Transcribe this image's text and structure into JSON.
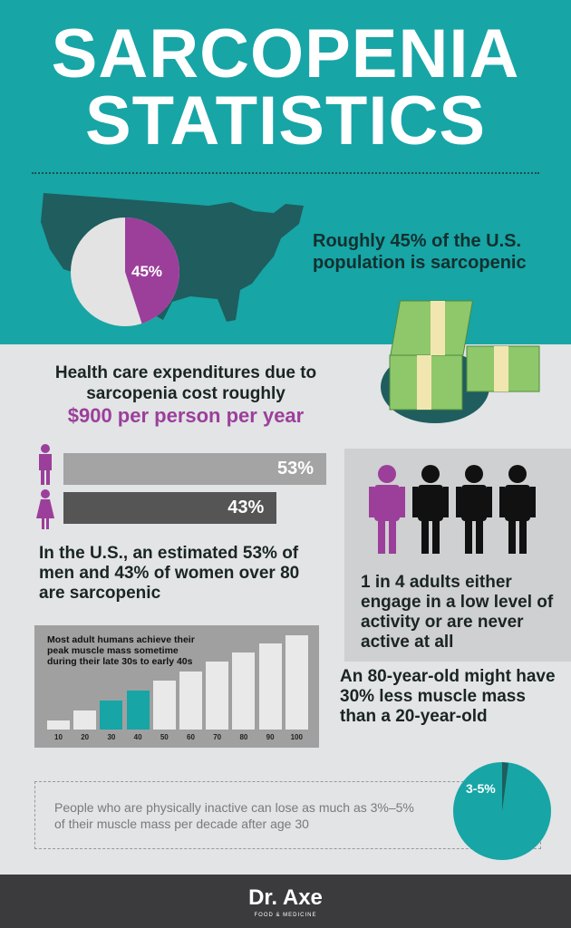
{
  "title": {
    "line1": "SARCOPENIA",
    "line2": "STATISTICS"
  },
  "colors": {
    "teal": "#17a5a6",
    "purple": "#9b3f9b",
    "dark_teal": "#1f5d5e",
    "gray_bg": "#e2e4e5",
    "footer": "#3b3b3d"
  },
  "population": {
    "pie_label": "45%",
    "text": "Roughly 45% of the U.S. population is sarcopenic",
    "percent": 45
  },
  "cost": {
    "text": "Health care expenditures due to sarcopenia cost roughly",
    "highlight": "$900 per person per year"
  },
  "gender": {
    "men_label": "53%",
    "women_label": "43%",
    "text": "In the U.S., an estimated 53% of men and 43% of women over 80 are sarcopenic"
  },
  "activity": {
    "text": "1 in 4 adults either engage in a low level of activity or are never active at all"
  },
  "age_compare": {
    "text": "An 80-year-old might have 30% less muscle mass than a 20-year-old"
  },
  "inactive": {
    "text": "People who are physically inactive can lose as much as 3%–5% of their muscle mass per decade after age 30",
    "pie_label": "3-5%"
  },
  "footer": {
    "brand": "Dr. Axe",
    "tagline": "FOOD & MEDICINE"
  },
  "chart_data": [
    {
      "type": "bar",
      "orientation": "horizontal",
      "categories": [
        "men",
        "women"
      ],
      "values": [
        53,
        43
      ],
      "data_labels": [
        "53%",
        "43%"
      ]
    },
    {
      "type": "bar",
      "title": "Most adult humans achieve their peak muscle mass sometime during their late 30s to early 40s",
      "categories": [
        "10",
        "20",
        "30",
        "40",
        "50",
        "60",
        "70",
        "80",
        "90",
        "100"
      ],
      "values": [
        10,
        20,
        31,
        41,
        52,
        62,
        72,
        82,
        91,
        100
      ],
      "highlighted": [
        "30",
        "40"
      ]
    },
    {
      "type": "pie",
      "values": [
        45,
        55
      ],
      "data_labels": [
        "45%"
      ]
    },
    {
      "type": "pie",
      "values": [
        4,
        96
      ],
      "data_labels": [
        "3-5%"
      ]
    }
  ]
}
